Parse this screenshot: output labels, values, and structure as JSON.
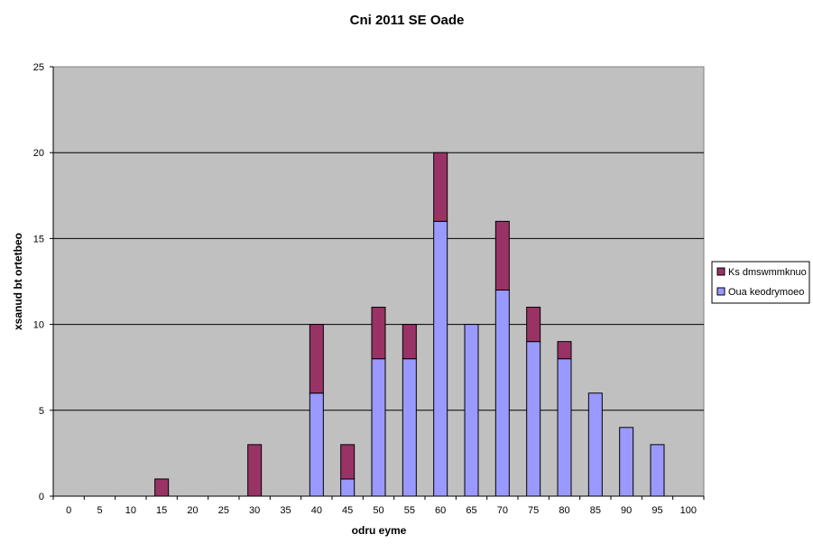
{
  "chart_data": {
    "type": "bar",
    "stacked": true,
    "title": "Cni 2011 SE Oade",
    "xlabel": "odru eyme",
    "ylabel": "xsanud bt ortetbeo",
    "categories": [
      "0",
      "5",
      "10",
      "15",
      "20",
      "25",
      "30",
      "35",
      "40",
      "45",
      "50",
      "55",
      "60",
      "65",
      "70",
      "75",
      "80",
      "85",
      "90",
      "95",
      "100"
    ],
    "ylim": [
      0,
      25
    ],
    "yticks": [
      "0",
      "5",
      "10",
      "15",
      "20",
      "25"
    ],
    "grid": true,
    "legend_position": "right",
    "series": [
      {
        "name": "Oua keodrymoeo",
        "color": "#9999ff",
        "values": [
          0,
          0,
          0,
          0,
          0,
          0,
          0,
          0,
          6,
          1,
          8,
          8,
          16,
          10,
          12,
          9,
          8,
          6,
          4,
          3,
          0
        ]
      },
      {
        "name": "Ks dmswmmknuo",
        "color": "#993366",
        "values": [
          0,
          0,
          0,
          1,
          0,
          0,
          3,
          0,
          4,
          2,
          3,
          2,
          4,
          0,
          4,
          2,
          1,
          0,
          0,
          0,
          0
        ]
      }
    ],
    "plot_background": "#c0c0c0"
  }
}
